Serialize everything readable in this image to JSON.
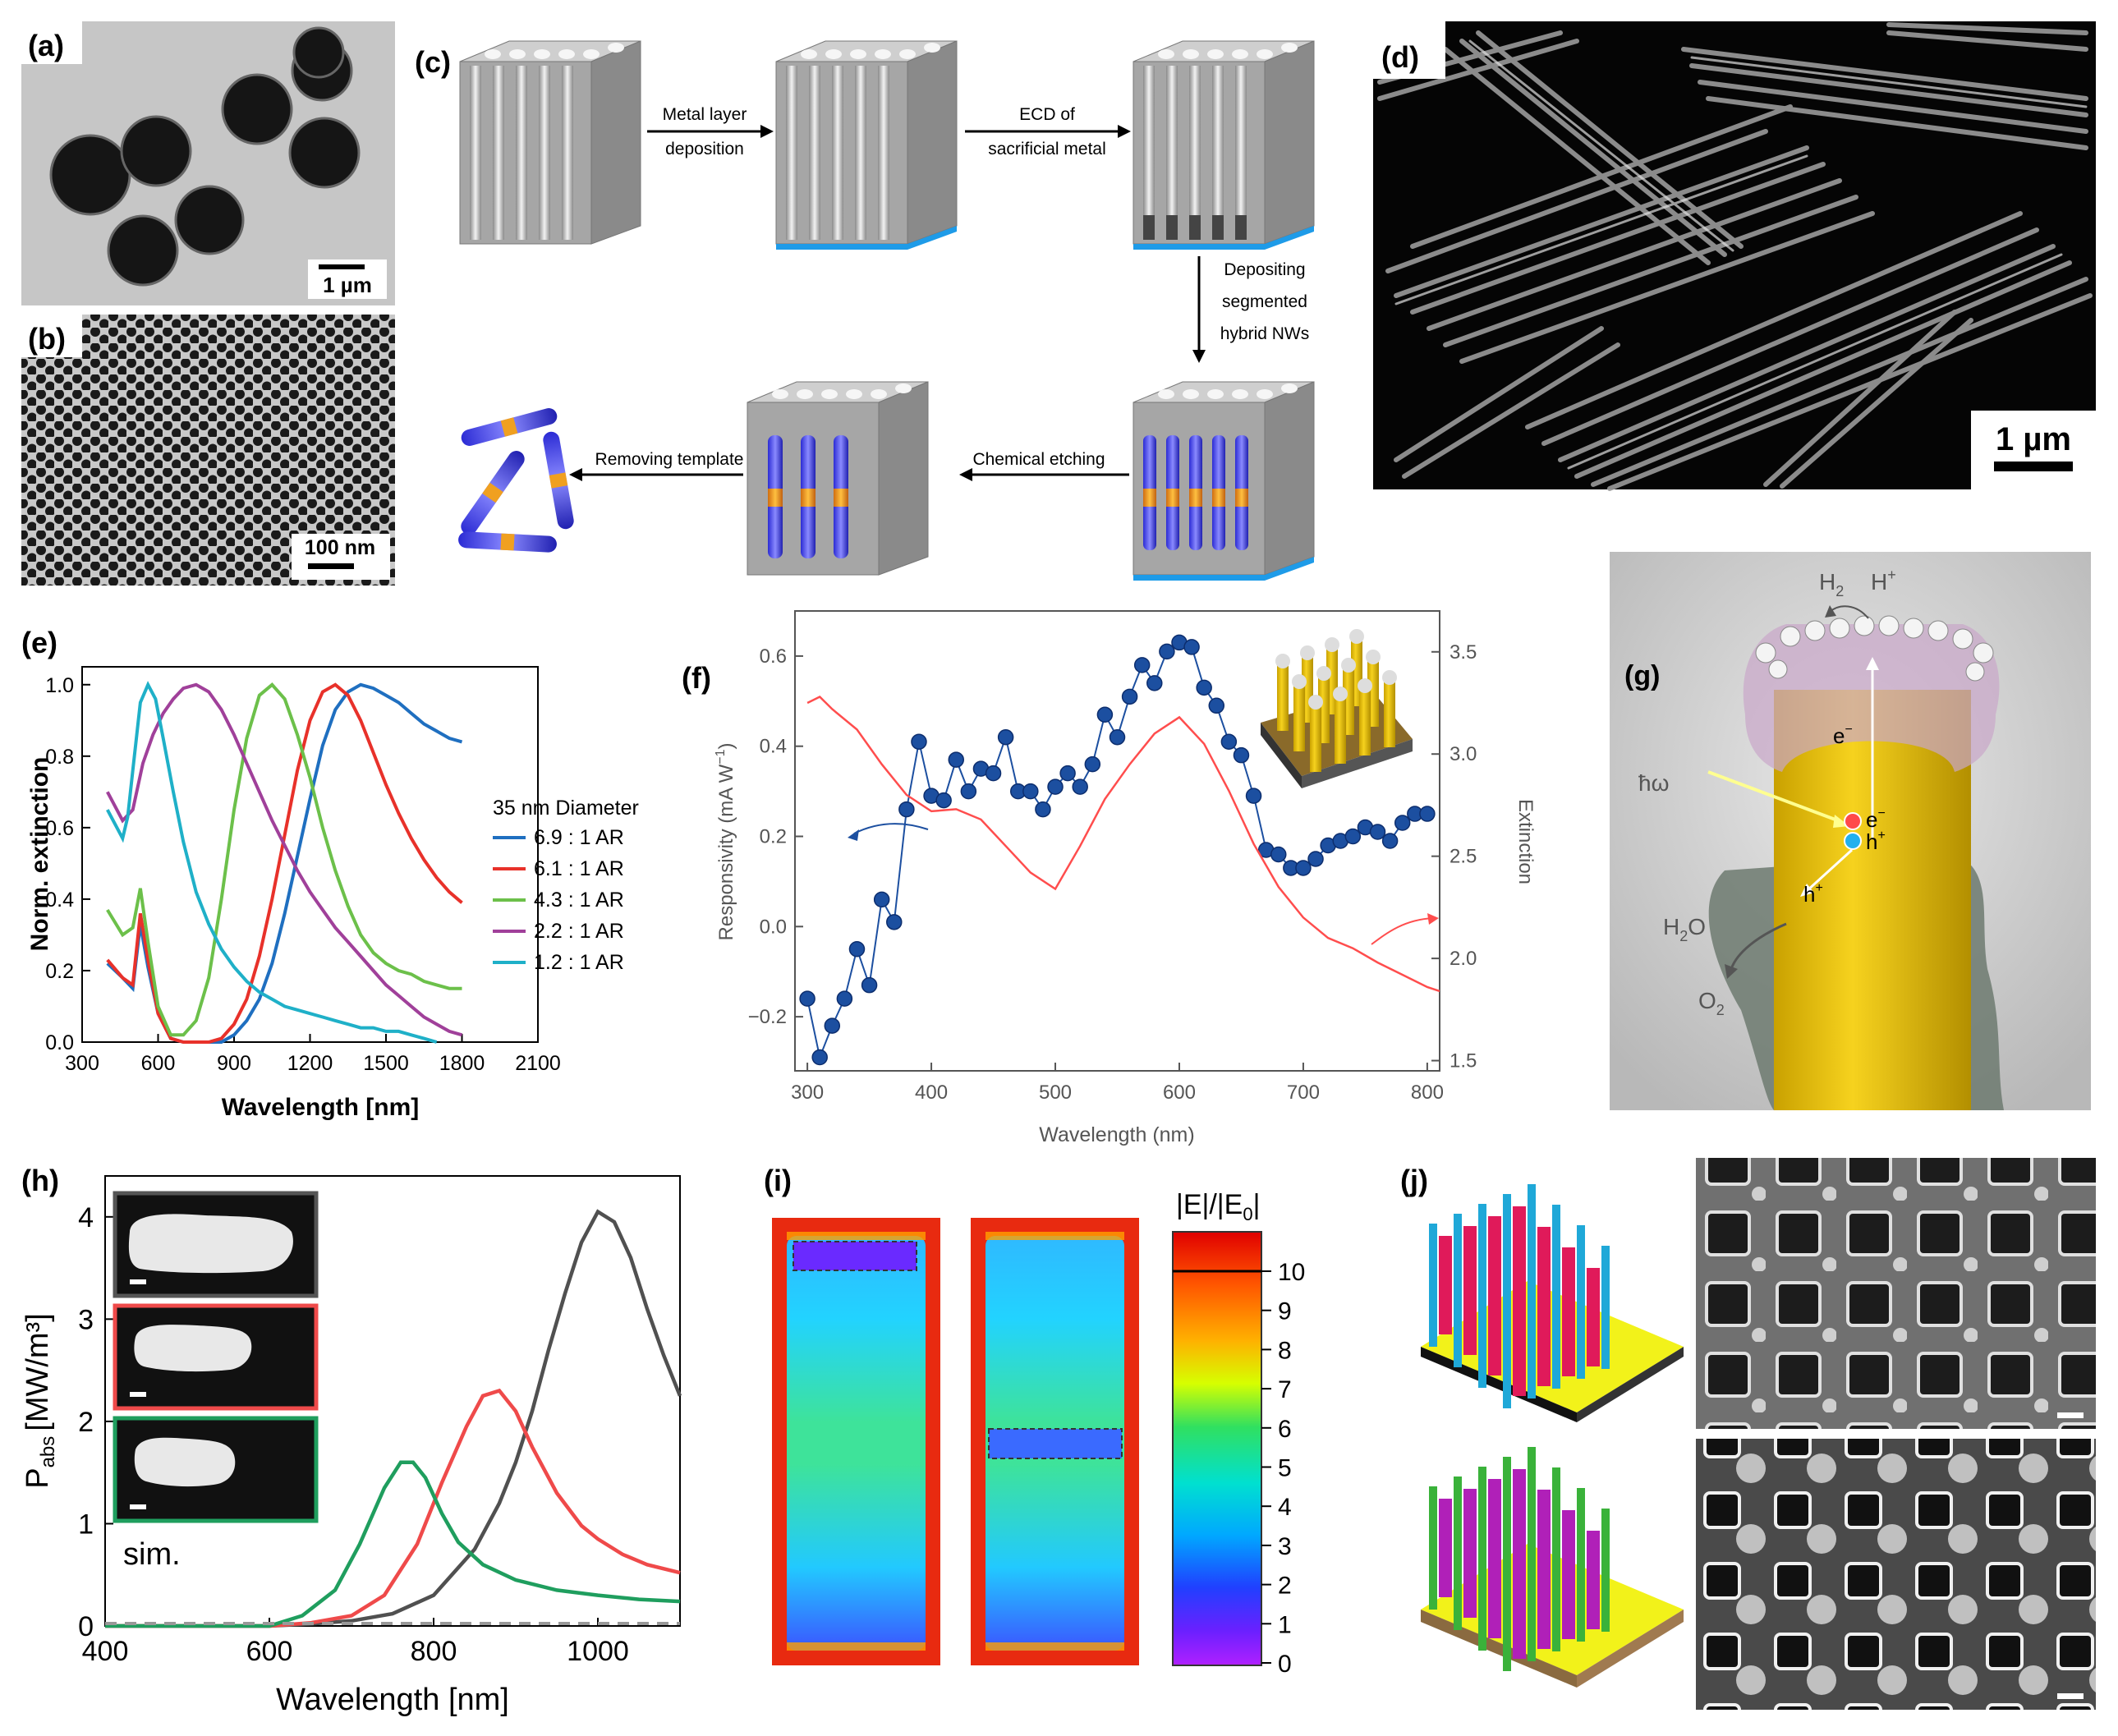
{
  "panel_labels": [
    "(a)",
    "(b)",
    "(c)",
    "(d)",
    "(e)",
    "(f)",
    "(g)",
    "(h)",
    "(i)",
    "(j)"
  ],
  "panel_a": {
    "scalebar": "1 µm"
  },
  "panel_b": {
    "scalebar": "100 nm"
  },
  "panel_c": {
    "steps": [
      "Metal layer",
      "deposition",
      "ECD of",
      "sacrificial metal",
      "Depositing",
      "segmented",
      "hybrid NWs",
      "Chemical etching",
      "Removing template"
    ]
  },
  "panel_d": {
    "scalebar": "1 µm"
  },
  "panel_g": {
    "labels": [
      "H",
      "2",
      "H",
      "+",
      "e",
      "−",
      "ħω",
      "e",
      "−",
      "h",
      "+",
      "h",
      "+",
      "H",
      "2",
      "O",
      "O",
      "2"
    ]
  },
  "panel_i": {
    "colorbar_title": "|E|/|E",
    "colorbar_sub": "0",
    "colorbar_ticks": [
      "10",
      "9",
      "8",
      "7",
      "6",
      "5",
      "4",
      "3",
      "2",
      "1",
      "0"
    ]
  },
  "chart_data": [
    {
      "type": "line",
      "panel": "e",
      "xlabel": "Wavelength [nm]",
      "ylabel": "Norm. extinction",
      "xlim": [
        300,
        2100
      ],
      "ylim": [
        0,
        1.05
      ],
      "xticks": [
        "300",
        "600",
        "900",
        "1200",
        "1500",
        "1800",
        "2100"
      ],
      "yticks": [
        "0.0",
        "0.2",
        "0.4",
        "0.6",
        "0.8",
        "1.0"
      ],
      "legend_title": "35 nm Diameter",
      "series": [
        {
          "name": "6.9 : 1 AR",
          "color": "#1f6fc0",
          "x": [
            400,
            460,
            500,
            530,
            560,
            600,
            650,
            700,
            760,
            800,
            850,
            900,
            950,
            1000,
            1050,
            1100,
            1150,
            1200,
            1250,
            1300,
            1350,
            1400,
            1450,
            1500,
            1550,
            1600,
            1650,
            1700,
            1750,
            1800
          ],
          "y": [
            0.22,
            0.18,
            0.15,
            0.33,
            0.21,
            0.08,
            0.01,
            0.0,
            0.0,
            0.0,
            0.0,
            0.02,
            0.06,
            0.12,
            0.22,
            0.36,
            0.52,
            0.68,
            0.83,
            0.93,
            0.98,
            1.0,
            0.99,
            0.97,
            0.95,
            0.92,
            0.89,
            0.87,
            0.85,
            0.84
          ]
        },
        {
          "name": "6.1 : 1 AR",
          "color": "#e8312a",
          "x": [
            400,
            460,
            500,
            530,
            560,
            600,
            650,
            700,
            760,
            800,
            850,
            900,
            950,
            1000,
            1050,
            1100,
            1150,
            1200,
            1250,
            1300,
            1350,
            1400,
            1450,
            1500,
            1550,
            1600,
            1650,
            1700,
            1750,
            1800
          ],
          "y": [
            0.23,
            0.18,
            0.16,
            0.36,
            0.23,
            0.08,
            0.01,
            0.0,
            0.0,
            0.0,
            0.01,
            0.05,
            0.12,
            0.24,
            0.4,
            0.58,
            0.76,
            0.9,
            0.98,
            1.0,
            0.97,
            0.9,
            0.81,
            0.72,
            0.64,
            0.57,
            0.51,
            0.46,
            0.42,
            0.39
          ]
        },
        {
          "name": "4.3 : 1 AR",
          "color": "#6cc04a",
          "x": [
            400,
            460,
            500,
            530,
            560,
            600,
            650,
            700,
            750,
            800,
            850,
            900,
            950,
            1000,
            1050,
            1100,
            1150,
            1200,
            1250,
            1300,
            1350,
            1400,
            1450,
            1500,
            1550,
            1600,
            1650,
            1700,
            1750,
            1800
          ],
          "y": [
            0.37,
            0.3,
            0.32,
            0.43,
            0.28,
            0.1,
            0.02,
            0.02,
            0.06,
            0.18,
            0.4,
            0.65,
            0.85,
            0.97,
            1.0,
            0.96,
            0.86,
            0.74,
            0.6,
            0.48,
            0.38,
            0.3,
            0.25,
            0.22,
            0.2,
            0.19,
            0.17,
            0.16,
            0.15,
            0.15
          ]
        },
        {
          "name": "2.2 : 1 AR",
          "color": "#a0409a",
          "x": [
            400,
            460,
            500,
            540,
            580,
            620,
            660,
            700,
            750,
            800,
            850,
            900,
            950,
            1000,
            1050,
            1100,
            1150,
            1200,
            1250,
            1300,
            1350,
            1400,
            1450,
            1500,
            1550,
            1600,
            1650,
            1700,
            1750,
            1800
          ],
          "y": [
            0.7,
            0.62,
            0.65,
            0.78,
            0.86,
            0.92,
            0.96,
            0.99,
            1.0,
            0.98,
            0.93,
            0.86,
            0.78,
            0.7,
            0.62,
            0.55,
            0.48,
            0.42,
            0.37,
            0.32,
            0.28,
            0.24,
            0.2,
            0.16,
            0.13,
            0.1,
            0.07,
            0.05,
            0.03,
            0.02
          ]
        },
        {
          "name": "1.2 : 1 AR",
          "color": "#1fb0c8",
          "x": [
            400,
            460,
            480,
            500,
            530,
            560,
            590,
            620,
            660,
            700,
            750,
            800,
            850,
            900,
            950,
            1000,
            1050,
            1100,
            1150,
            1200,
            1250,
            1300,
            1350,
            1400,
            1450,
            1500,
            1550,
            1600,
            1650,
            1700
          ],
          "y": [
            0.65,
            0.57,
            0.63,
            0.76,
            0.95,
            1.0,
            0.96,
            0.85,
            0.7,
            0.56,
            0.42,
            0.33,
            0.26,
            0.21,
            0.17,
            0.14,
            0.12,
            0.1,
            0.09,
            0.08,
            0.07,
            0.06,
            0.05,
            0.04,
            0.04,
            0.03,
            0.03,
            0.02,
            0.01,
            0.0
          ]
        }
      ]
    },
    {
      "type": "line",
      "panel": "f",
      "xlabel": "Wavelength (nm)",
      "ylabel": "Responsivity (mA W",
      "ylabel_sup": "−1",
      "ylabel_end": ")",
      "y2label": "Extinction",
      "xlim": [
        290,
        810
      ],
      "ylim": [
        -0.32,
        0.7
      ],
      "y2lim": [
        1.45,
        3.7
      ],
      "xticks": [
        "300",
        "400",
        "500",
        "600",
        "700",
        "800"
      ],
      "yticks": [
        "−0.2",
        "0.0",
        "0.2",
        "0.4",
        "0.6"
      ],
      "y2ticks": [
        "1.5",
        "2.0",
        "2.5",
        "3.0",
        "3.5"
      ],
      "series": [
        {
          "name": "",
          "color": "#1c4fa0",
          "axis": "left",
          "markers": true,
          "x": [
            300,
            310,
            320,
            330,
            340,
            350,
            360,
            370,
            380,
            390,
            400,
            410,
            420,
            430,
            440,
            450,
            460,
            470,
            480,
            490,
            500,
            510,
            520,
            530,
            540,
            550,
            560,
            570,
            580,
            590,
            600,
            610,
            620,
            630,
            640,
            650,
            660,
            670,
            680,
            690,
            700,
            710,
            720,
            730,
            740,
            750,
            760,
            770,
            780,
            790,
            800
          ],
          "y": [
            -0.16,
            -0.29,
            -0.22,
            -0.16,
            -0.05,
            -0.13,
            0.06,
            0.01,
            0.26,
            0.41,
            0.29,
            0.28,
            0.37,
            0.3,
            0.35,
            0.34,
            0.42,
            0.3,
            0.3,
            0.26,
            0.31,
            0.34,
            0.31,
            0.36,
            0.47,
            0.42,
            0.51,
            0.58,
            0.54,
            0.61,
            0.63,
            0.62,
            0.53,
            0.49,
            0.41,
            0.38,
            0.29,
            0.17,
            0.16,
            0.13,
            0.13,
            0.15,
            0.18,
            0.19,
            0.2,
            0.22,
            0.21,
            0.19,
            0.23,
            0.25,
            0.25
          ]
        },
        {
          "name": "",
          "color": "#ff4d4d",
          "axis": "right",
          "markers": false,
          "x": [
            300,
            310,
            320,
            340,
            360,
            380,
            400,
            420,
            440,
            460,
            480,
            500,
            520,
            540,
            560,
            580,
            600,
            620,
            640,
            660,
            680,
            700,
            720,
            740,
            760,
            780,
            800,
            810
          ],
          "y": [
            3.25,
            3.28,
            3.22,
            3.12,
            2.95,
            2.8,
            2.72,
            2.73,
            2.68,
            2.55,
            2.42,
            2.34,
            2.55,
            2.78,
            2.95,
            3.1,
            3.18,
            3.05,
            2.82,
            2.56,
            2.35,
            2.2,
            2.1,
            2.05,
            1.98,
            1.92,
            1.86,
            1.84
          ]
        }
      ]
    },
    {
      "type": "line",
      "panel": "h",
      "xlabel": "Wavelength [nm]",
      "ylabel": "P",
      "ylabel_sub": "abs",
      "ylabel_unit": "[MW/m³]",
      "xlim": [
        400,
        1100
      ],
      "ylim": [
        0,
        4.4
      ],
      "xticks": [
        "400",
        "600",
        "800",
        "1000"
      ],
      "yticks": [
        "0",
        "1",
        "2",
        "3",
        "4"
      ],
      "inset_label": "sim.",
      "series": [
        {
          "name": "",
          "color": "#505050",
          "x": [
            400,
            600,
            650,
            700,
            750,
            800,
            850,
            880,
            900,
            920,
            940,
            960,
            980,
            1000,
            1020,
            1040,
            1060,
            1080,
            1100
          ],
          "y": [
            0.0,
            0.0,
            0.02,
            0.05,
            0.12,
            0.3,
            0.75,
            1.2,
            1.6,
            2.1,
            2.7,
            3.25,
            3.75,
            4.05,
            3.95,
            3.6,
            3.1,
            2.65,
            2.25
          ]
        },
        {
          "name": "",
          "color": "#ef4a4a",
          "x": [
            400,
            600,
            650,
            700,
            740,
            780,
            810,
            840,
            860,
            880,
            900,
            920,
            950,
            980,
            1000,
            1030,
            1060,
            1100
          ],
          "y": [
            0.0,
            0.0,
            0.03,
            0.1,
            0.3,
            0.8,
            1.4,
            1.95,
            2.25,
            2.3,
            2.1,
            1.75,
            1.3,
            0.98,
            0.85,
            0.7,
            0.6,
            0.52
          ]
        },
        {
          "name": "",
          "color": "#1f9e5e",
          "x": [
            400,
            600,
            640,
            680,
            710,
            740,
            760,
            775,
            790,
            810,
            830,
            860,
            900,
            950,
            1000,
            1050,
            1100
          ],
          "y": [
            0.0,
            0.0,
            0.1,
            0.35,
            0.8,
            1.35,
            1.6,
            1.6,
            1.45,
            1.1,
            0.82,
            0.6,
            0.45,
            0.35,
            0.3,
            0.26,
            0.24
          ]
        }
      ]
    }
  ]
}
